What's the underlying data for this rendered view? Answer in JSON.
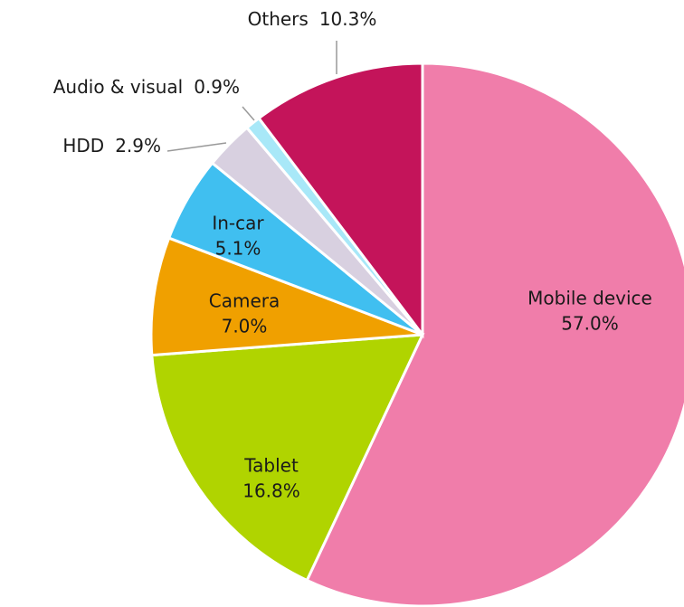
{
  "chart_data": {
    "type": "pie",
    "categories": [
      "Mobile device",
      "Tablet",
      "Camera",
      "In-car",
      "HDD",
      "Audio & visual",
      "Others"
    ],
    "values": [
      57.0,
      16.8,
      7.0,
      5.1,
      2.9,
      0.9,
      10.3
    ],
    "value_labels": [
      "57.0%",
      "16.8%",
      "7.0%",
      "5.1%",
      "2.9%",
      "0.9%",
      "10.3%"
    ],
    "colors": [
      "#f07daa",
      "#b0d400",
      "#f0a000",
      "#40bff0",
      "#d8d0e0",
      "#a8e8f8",
      "#c4145a"
    ]
  }
}
